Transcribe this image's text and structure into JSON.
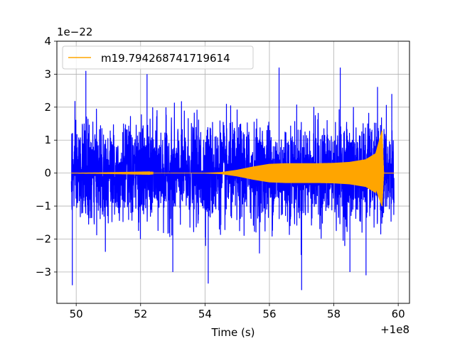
{
  "chart_data": {
    "type": "line",
    "title": "",
    "xlabel": "Time (s)",
    "ylabel": "",
    "x_offset_label": "+1e8",
    "y_scale_label": "1e−22",
    "xlim": [
      49.4,
      60.35
    ],
    "ylim": [
      -3.95,
      4.0
    ],
    "x_ticks": [
      50,
      52,
      54,
      56,
      58,
      60
    ],
    "x_tick_labels": [
      "50",
      "52",
      "54",
      "56",
      "58",
      "60"
    ],
    "y_ticks": [
      -3,
      -2,
      -1,
      0,
      1,
      2,
      3,
      4
    ],
    "y_tick_labels": [
      "−3",
      "−2",
      "−1",
      "0",
      "1",
      "2",
      "3",
      "4"
    ],
    "grid": true,
    "legend_position": "top-left",
    "series": [
      {
        "name": "",
        "color": "#0000ff",
        "kind": "noise",
        "x_start": 49.85,
        "x_end": 59.87,
        "typical_amplitude": 1.9,
        "peak_max": 3.25,
        "peak_min": -3.55
      },
      {
        "name": "m19.794268741719614",
        "color": "#ffa500",
        "kind": "chirp",
        "x_start": 49.85,
        "x_end": 59.87,
        "envelope": [
          [
            49.85,
            0.0
          ],
          [
            54.0,
            0.01
          ],
          [
            54.5,
            0.03
          ],
          [
            55.0,
            0.1
          ],
          [
            55.5,
            0.2
          ],
          [
            56.0,
            0.28
          ],
          [
            56.5,
            0.3
          ],
          [
            57.0,
            0.3
          ],
          [
            57.5,
            0.3
          ],
          [
            58.0,
            0.31
          ],
          [
            58.5,
            0.34
          ],
          [
            59.0,
            0.42
          ],
          [
            59.3,
            0.6
          ],
          [
            59.5,
            1.3
          ],
          [
            59.55,
            0.0
          ],
          [
            59.87,
            0.0
          ]
        ],
        "peak_max": 1.35,
        "peak_min": -1.05
      }
    ]
  }
}
